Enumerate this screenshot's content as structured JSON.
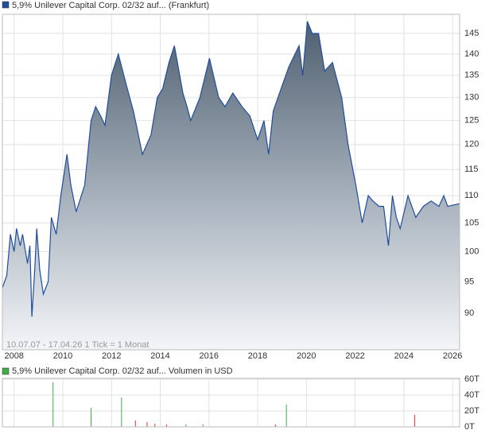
{
  "chart_data": [
    {
      "type": "area",
      "log_scale": true,
      "grid": true,
      "note": "10.07.07 - 17.04.26   1 Tick = 1 Monat",
      "series": [
        {
          "name": "5,9% Unilever Capital Corp. 02/32 auf... (Frankfurt)",
          "color": "#1f4e9c",
          "x": [
            2007.52,
            2007.7,
            2007.85,
            2008.0,
            2008.1,
            2008.25,
            2008.35,
            2008.55,
            2008.65,
            2008.73,
            2008.85,
            2008.93,
            2009.05,
            2009.2,
            2009.4,
            2009.53,
            2009.73,
            2009.92,
            2010.17,
            2010.33,
            2010.55,
            2010.9,
            2011.16,
            2011.35,
            2011.55,
            2011.73,
            2012.0,
            2012.28,
            2012.6,
            2012.9,
            2013.27,
            2013.62,
            2013.88,
            2014.1,
            2014.36,
            2014.58,
            2014.93,
            2015.1,
            2015.25,
            2015.63,
            2016.02,
            2016.4,
            2016.66,
            2016.98,
            2017.36,
            2017.68,
            2018.0,
            2018.26,
            2018.45,
            2018.64,
            2018.96,
            2019.28,
            2019.7,
            2019.85,
            2020.04,
            2020.24,
            2020.5,
            2020.75,
            2021.07,
            2021.45,
            2021.71,
            2022.03,
            2022.29,
            2022.54,
            2022.73,
            2022.98,
            2023.17,
            2023.37,
            2023.53,
            2023.69,
            2023.85,
            2024.17,
            2024.49,
            2024.8,
            2025.12,
            2025.44,
            2025.64,
            2025.8,
            2026.29
          ],
          "values": [
            94,
            96,
            103,
            100,
            104,
            101,
            103,
            98,
            101,
            89.5,
            97,
            104,
            97,
            93,
            95,
            106,
            103,
            110,
            118,
            112,
            107,
            112,
            125,
            128,
            126,
            124,
            135,
            140,
            133,
            127,
            118,
            122,
            130,
            132,
            138,
            142,
            131,
            128,
            125,
            130,
            139,
            130,
            128,
            131,
            128,
            126,
            121,
            125,
            118,
            127,
            132,
            137,
            142,
            135,
            148,
            145,
            145,
            136,
            138,
            130,
            120,
            112,
            105,
            110,
            109,
            108,
            108,
            101,
            110,
            106,
            104,
            110,
            106,
            108,
            109,
            108,
            110,
            108,
            108.5
          ]
        }
      ],
      "xlim": [
        2007.52,
        2026.29
      ],
      "xticks": [
        2008,
        2010,
        2012,
        2014,
        2016,
        2018,
        2020,
        2022,
        2024,
        2026
      ],
      "ylim": [
        84.6,
        149.8
      ],
      "yticks": [
        90,
        95,
        100,
        105,
        110,
        115,
        120,
        125,
        130,
        135,
        140,
        145
      ]
    },
    {
      "type": "bar",
      "grid": true,
      "series": [
        {
          "name": "5,9% Unilever Capital Corp. 02/32 auf... Volumen in USD",
          "color": "#3cb043",
          "x": [
            2009.6,
            2011.16,
            2012.41,
            2012.98,
            2013.46,
            2013.78,
            2014.26,
            2015.06,
            2015.76,
            2018.73,
            2019.18,
            2024.45
          ],
          "values": [
            56,
            24,
            37,
            8,
            6,
            4,
            3,
            3,
            3,
            3,
            28,
            15
          ],
          "colors": [
            "#3cb043",
            "#3cb043",
            "#3cb043",
            "#e03030",
            "#e03030",
            "#e03030",
            "#e03030",
            "#3cb043",
            "#3cb043",
            "#e03030",
            "#3cb043",
            "#e03030"
          ]
        }
      ],
      "xlim": [
        2007.52,
        2026.29
      ],
      "ylim": [
        0,
        61
      ],
      "yticks": [
        {
          "value": 0,
          "label": "0T"
        },
        {
          "value": 20,
          "label": "20T"
        },
        {
          "value": 40,
          "label": "40T"
        },
        {
          "value": 60,
          "label": "60T"
        }
      ]
    }
  ]
}
